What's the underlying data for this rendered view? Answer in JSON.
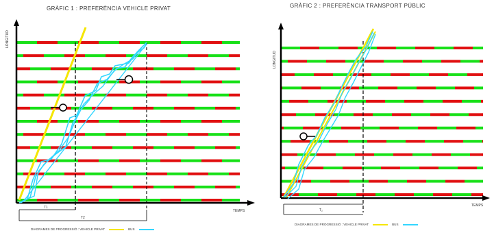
{
  "chart1": {
    "title": "GRÀFIC 1 :   PREFERÈNCIA VEHICLE PRIVAT",
    "ylabel": "LONGITUD",
    "xlabel": "TEMPS",
    "t1_label": "T1",
    "t2_label": "T2"
  },
  "chart2": {
    "title": "GRÀFIC 2 :   PREFERÈNCIA TRANSPORT PÚBLIC",
    "ylabel": "LONGITUD",
    "xlabel": "TEMPS",
    "t_label": "T₂"
  },
  "legend": {
    "prefix": "DIAGRAMES DE PROGRESSIÓ :  VEHICLE PRIVAT",
    "bus": "BUS",
    "colors": {
      "vehicle": "#f5e600",
      "bus": "#33d6ff",
      "red": "#e01010",
      "green": "#18e018"
    }
  }
}
